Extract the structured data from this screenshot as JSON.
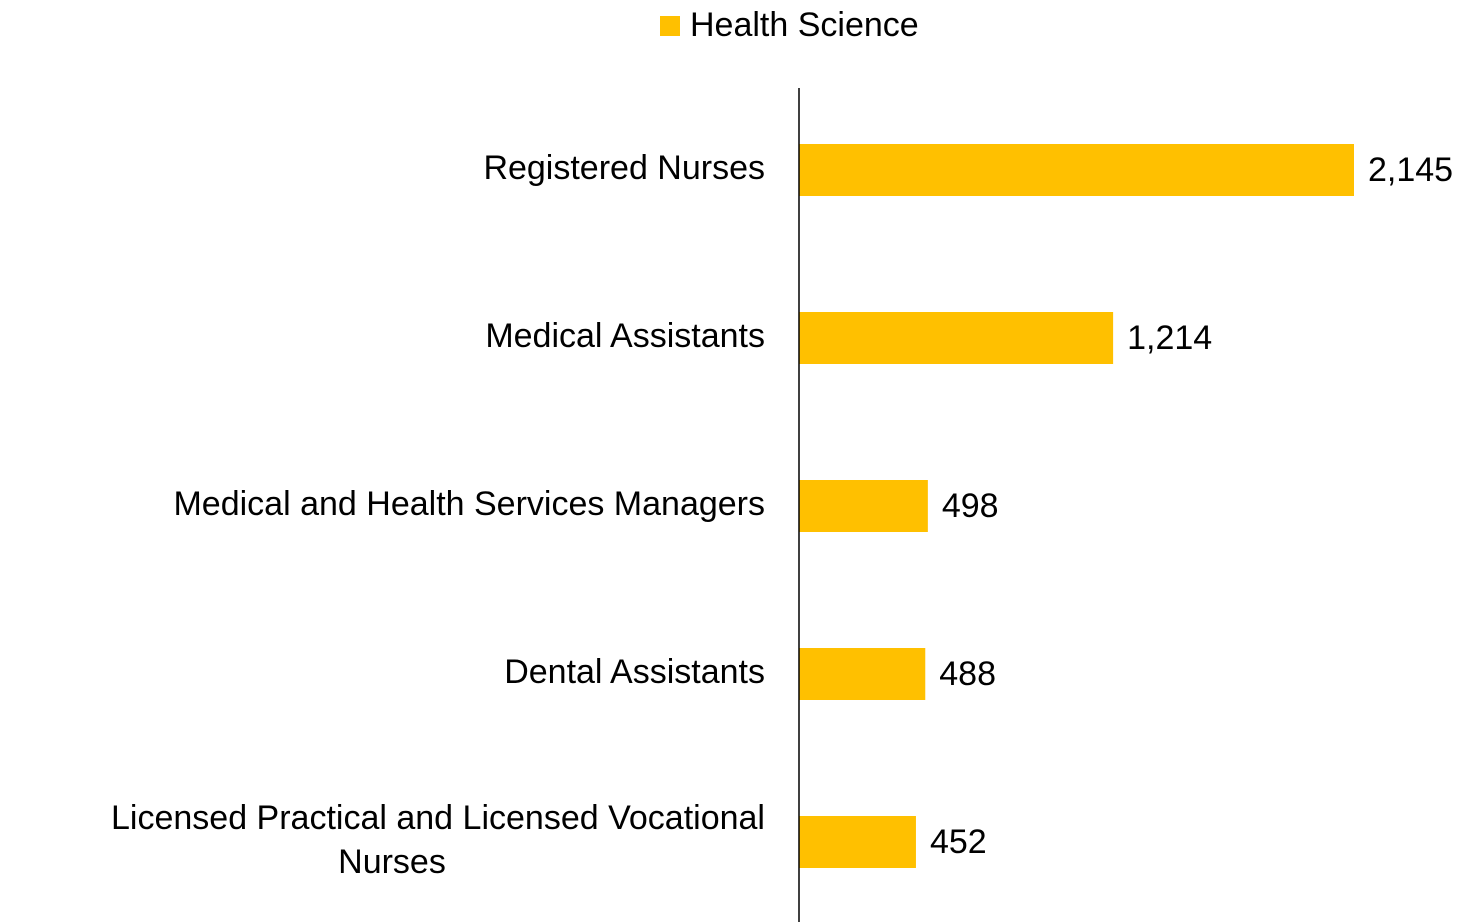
{
  "chart_data": {
    "type": "bar",
    "orientation": "horizontal",
    "categories": [
      "Registered Nurses",
      "Medical Assistants",
      "Medical and Health Services Managers",
      "Dental Assistants",
      "Licensed Practical and Licensed Vocational Nurses"
    ],
    "series": [
      {
        "name": "Health Science",
        "color": "#ffc000",
        "values": [
          2145,
          1214,
          498,
          488,
          452
        ],
        "value_labels": [
          "2,145",
          "1,214",
          "498",
          "488",
          "452"
        ]
      }
    ],
    "legend": "top"
  }
}
